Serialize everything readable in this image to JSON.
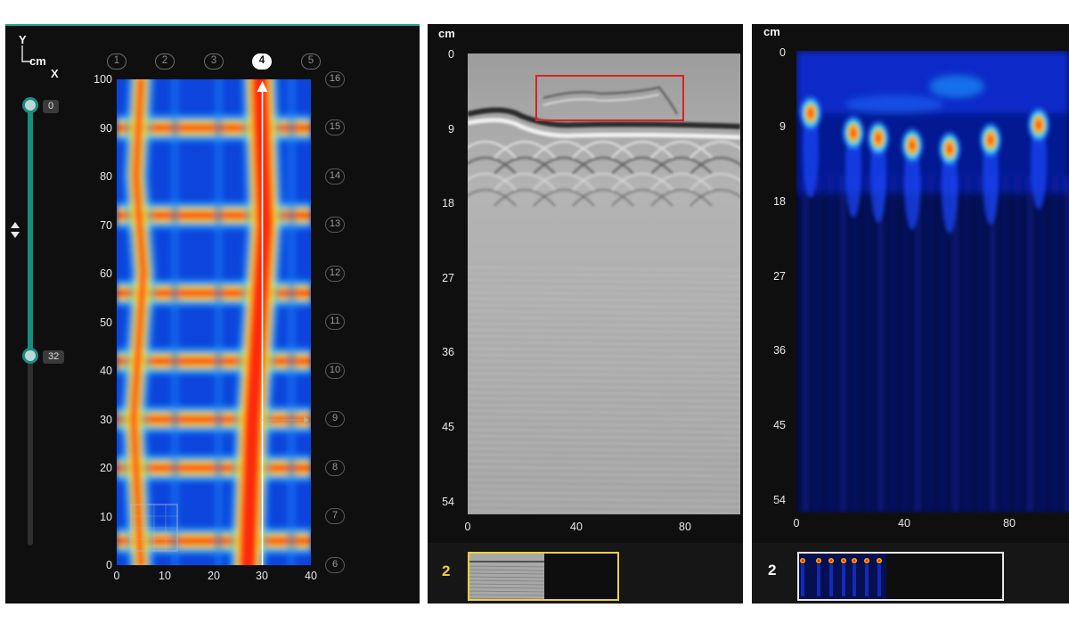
{
  "left_panel": {
    "axis_y_label": "Y",
    "axis_x_label": "X",
    "unit": "cm",
    "slider_top_value": "0",
    "slider_bottom_value": "32",
    "depth_arrows_icon": "up-down-arrows",
    "column_markers": [
      "1",
      "2",
      "3",
      "4",
      "5"
    ],
    "active_column": "4",
    "row_markers": [
      "16",
      "15",
      "14",
      "13",
      "12",
      "11",
      "10",
      "9",
      "8",
      "7",
      "6"
    ],
    "y_ticks": [
      "100",
      "90",
      "80",
      "70",
      "60",
      "50",
      "40",
      "30",
      "20",
      "10",
      "0"
    ],
    "x_ticks": [
      "0",
      "10",
      "20",
      "30",
      "40"
    ],
    "cursor_x_value": 30,
    "colors": {
      "accent": "#1aa89a",
      "heat_low": "#0a3cd6",
      "heat_high": "#e61e0c"
    }
  },
  "middle_panel": {
    "unit": "cm",
    "y_ticks": [
      "0",
      "9",
      "18",
      "27",
      "36",
      "45",
      "54"
    ],
    "x_ticks": [
      "0",
      "40",
      "80"
    ],
    "slot_number": "2",
    "slot_color": "#f0d03a",
    "highlight_color": "#e02020"
  },
  "right_panel": {
    "unit": "cm",
    "y_ticks": [
      "0",
      "9",
      "18",
      "27",
      "36",
      "45",
      "54"
    ],
    "x_ticks": [
      "0",
      "40",
      "80"
    ],
    "slot_number": "2",
    "slot_color": "#ffffff"
  }
}
